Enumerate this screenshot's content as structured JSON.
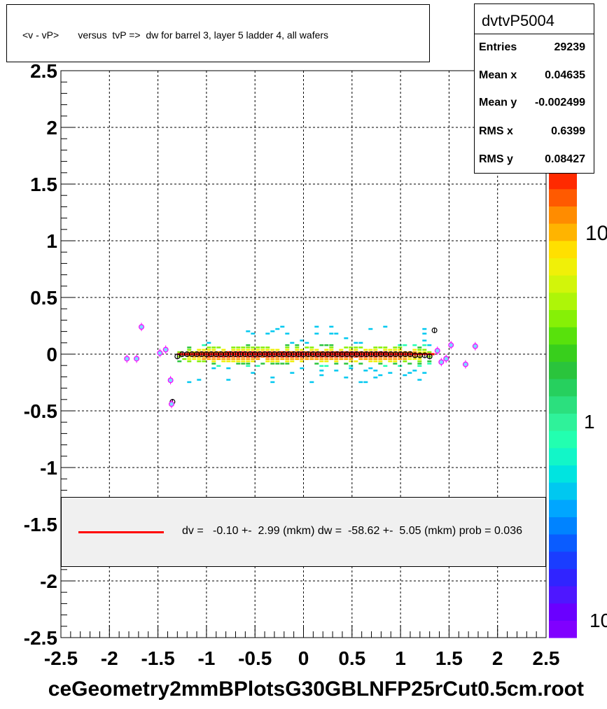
{
  "title": "<v - vP>       versus  tvP =>  dw for barrel 3, layer 5 ladder 4, all wafers",
  "stats": {
    "name": "dvtvP5004",
    "rows": [
      {
        "label": "Entries",
        "value": "29239"
      },
      {
        "label": "Mean x",
        "value": "0.04635"
      },
      {
        "label": "Mean y",
        "value": "-0.002499"
      },
      {
        "label": "RMS x",
        "value": "0.6399"
      },
      {
        "label": "RMS y",
        "value": "0.08427"
      }
    ]
  },
  "fit_text": "dv =   -0.10 +-  2.99 (mkm) dw =  -58.62 +-  5.05 (mkm) prob = 0.036",
  "footer": "ceGeometry2mmBPlotsG30GBLNFP25rCut0.5cm.root",
  "colors": {
    "fit_line": "#ff0000",
    "profile_marker": "#000000",
    "outlier_marker": "#ff00ff",
    "grid": "#000000"
  },
  "chart_data": {
    "type": "heatmap",
    "title": "<v - vP>       versus  tvP =>  dw for barrel 3, layer 5 ladder 4, all wafers",
    "xlim": [
      -2.5,
      2.5
    ],
    "ylim": [
      -2.5,
      2.5
    ],
    "x_ticks": [
      "-2.5",
      "-2",
      "-1.5",
      "-1",
      "-0.5",
      "0",
      "0.5",
      "1",
      "1.5",
      "2",
      "2.5"
    ],
    "y_ticks": [
      "2.5",
      "2",
      "1.5",
      "1",
      "0.5",
      "0",
      "-0.5",
      "-1",
      "-1.5",
      "-2",
      "-2.5"
    ],
    "x_tick_values": [
      -2.5,
      -2,
      -1.5,
      -1,
      -0.5,
      0,
      0.5,
      1,
      1.5,
      2,
      2.5
    ],
    "y_tick_values": [
      2.5,
      2,
      1.5,
      1,
      0.5,
      0,
      -0.5,
      -1,
      -1.5,
      -2,
      -2.5
    ],
    "grid": true,
    "colorbar": {
      "scale": "log",
      "labels": [
        "10",
        "1",
        "10"
      ]
    },
    "density": {
      "x_range": [
        -1.3,
        1.3
      ],
      "y_center": 0.0,
      "y_core_halfwidth": 0.05,
      "y_extent": [
        -0.25,
        0.25
      ]
    },
    "profile": {
      "x": [
        -1.35,
        -1.3,
        -1.25,
        -1.2,
        -1.15,
        -1.1,
        -1.05,
        -1.0,
        -0.95,
        -0.9,
        -0.85,
        -0.8,
        -0.75,
        -0.7,
        -0.65,
        -0.6,
        -0.55,
        -0.5,
        -0.45,
        -0.4,
        -0.35,
        -0.3,
        -0.25,
        -0.2,
        -0.15,
        -0.1,
        -0.05,
        0.0,
        0.05,
        0.1,
        0.15,
        0.2,
        0.25,
        0.3,
        0.35,
        0.4,
        0.45,
        0.5,
        0.55,
        0.6,
        0.65,
        0.7,
        0.75,
        0.8,
        0.85,
        0.9,
        0.95,
        1.0,
        1.05,
        1.1,
        1.15,
        1.2,
        1.25,
        1.3,
        1.35
      ],
      "y": [
        -0.42,
        -0.02,
        0.0,
        0.0,
        0.0,
        0.0,
        0.0,
        0.0,
        0.0,
        0.0,
        0.0,
        0.0,
        0.0,
        0.0,
        0.0,
        0.0,
        0.0,
        0.0,
        0.0,
        0.0,
        0.0,
        0.0,
        0.0,
        0.0,
        0.0,
        0.0,
        0.0,
        0.0,
        0.0,
        0.0,
        0.0,
        0.0,
        0.0,
        0.0,
        0.0,
        0.0,
        0.0,
        0.0,
        0.0,
        0.0,
        0.0,
        0.0,
        0.0,
        0.0,
        0.0,
        0.0,
        0.0,
        0.0,
        0.0,
        0.0,
        -0.01,
        -0.01,
        -0.01,
        -0.02,
        0.21
      ]
    },
    "outliers": {
      "x": [
        -1.82,
        -1.72,
        -1.67,
        -1.48,
        -1.42,
        -1.37,
        -1.36,
        1.38,
        1.42,
        1.47,
        1.52,
        1.67,
        1.77
      ],
      "y": [
        -0.04,
        -0.04,
        0.24,
        0.01,
        0.04,
        -0.23,
        -0.44,
        0.03,
        -0.07,
        -0.04,
        0.08,
        -0.09,
        0.07
      ]
    },
    "fit": {
      "dv": -0.1,
      "dv_err": 2.99,
      "dw": -58.62,
      "dw_err": 5.05,
      "prob": 0.036,
      "x_range": [
        -1.3,
        1.35
      ]
    }
  }
}
